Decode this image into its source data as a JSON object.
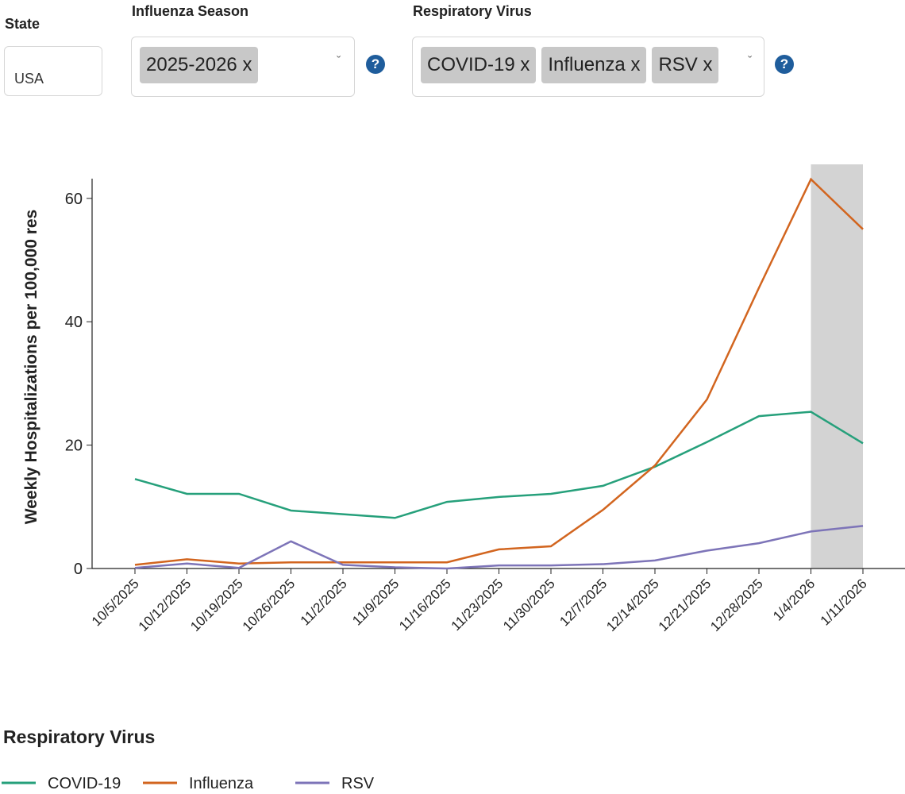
{
  "controls": {
    "state": {
      "label": "State",
      "value": "USA"
    },
    "season": {
      "label": "Influenza Season",
      "chips": [
        "2025-2026 x"
      ]
    },
    "virus": {
      "label": "Respiratory Virus",
      "chips": [
        "COVID-19 x",
        "Influenza x",
        "RSV x"
      ]
    }
  },
  "chart_data": {
    "type": "line",
    "y_label": "Weekly Hospitalizations per 100,000 res",
    "categories": [
      "10/5/2025",
      "10/12/2025",
      "10/19/2025",
      "10/26/2025",
      "11/2/2025",
      "11/9/2025",
      "11/16/2025",
      "11/23/2025",
      "11/30/2025",
      "12/7/2025",
      "12/14/2025",
      "12/21/2025",
      "12/28/2025",
      "1/4/2026",
      "1/11/2026"
    ],
    "series": [
      {
        "name": "COVID-19",
        "color": "#26a07b",
        "values": [
          14.5,
          12.1,
          12.1,
          9.4,
          8.8,
          8.2,
          10.8,
          11.6,
          12.1,
          13.4,
          16.5,
          20.5,
          24.7,
          25.4,
          20.3
        ]
      },
      {
        "name": "Influenza",
        "color": "#d2651f",
        "values": [
          0.6,
          1.5,
          0.8,
          1.0,
          1.0,
          1.0,
          1.0,
          3.1,
          3.6,
          9.5,
          16.7,
          27.4,
          45.5,
          63.1,
          55
        ]
      },
      {
        "name": "RSV",
        "color": "#7d74b8",
        "values": [
          0.1,
          0.8,
          0.1,
          4.4,
          0.6,
          0.2,
          0,
          0.5,
          0.5,
          0.7,
          1.3,
          2.9,
          4.1,
          6.0,
          6.9
        ]
      }
    ],
    "ylim": [
      0,
      63.2
    ],
    "yticks": [
      0,
      20,
      40,
      60
    ],
    "highlight": "1/4/2026",
    "legend_title": "Respiratory Virus"
  }
}
